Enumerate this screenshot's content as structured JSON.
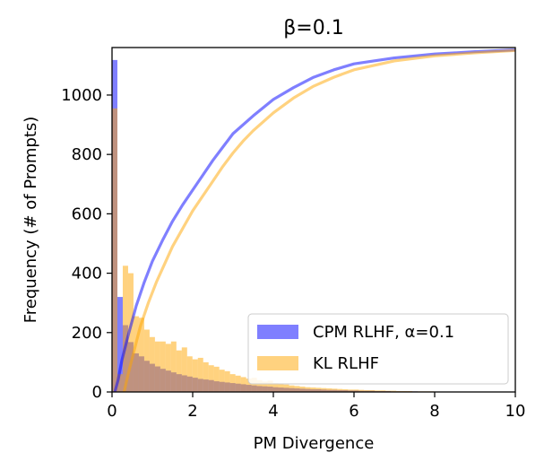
{
  "chart_data": {
    "type": "histogram",
    "title": "β=0.1",
    "xlabel": "PM Divergence",
    "ylabel": "Frequency (# of Prompts)",
    "xlim": [
      0,
      10
    ],
    "ylim": [
      0,
      1160
    ],
    "x_ticks": [
      0,
      2,
      4,
      6,
      8,
      10
    ],
    "y_ticks": [
      0,
      200,
      400,
      600,
      800,
      1000
    ],
    "grid": false,
    "legend_position": "lower-right",
    "bin_width": 0.133,
    "series": [
      {
        "name": "CPM RLHF, α=0.1",
        "color": "#0000ff",
        "alpha": 0.5,
        "histogram_counts": [
          1118,
          320,
          225,
          168,
          130,
          120,
          105,
          95,
          86,
          78,
          72,
          66,
          60,
          56,
          52,
          48,
          44,
          42,
          40,
          36,
          34,
          32,
          30,
          28,
          26,
          24,
          22,
          20,
          19,
          18,
          16,
          15,
          14,
          13,
          12,
          11,
          10,
          9,
          9,
          8,
          7,
          7,
          6,
          6,
          5,
          5,
          4,
          4,
          4,
          3,
          3,
          3,
          2,
          2,
          2,
          2,
          2,
          1,
          1,
          1,
          1,
          1,
          1,
          1,
          1,
          0,
          0,
          0,
          0,
          0,
          0,
          0,
          0,
          0,
          0
        ],
        "cdf_x": [
          0.07,
          0.15,
          0.25,
          0.4,
          0.6,
          0.8,
          1.0,
          1.25,
          1.5,
          1.75,
          2.0,
          2.25,
          2.5,
          2.75,
          3.0,
          3.5,
          4.0,
          4.5,
          5.0,
          5.5,
          6.0,
          7.0,
          8.0,
          9.0,
          10.0
        ],
        "cdf_y": [
          0,
          40,
          110,
          190,
          290,
          370,
          440,
          510,
          575,
          630,
          680,
          730,
          780,
          825,
          870,
          930,
          985,
          1025,
          1060,
          1085,
          1105,
          1125,
          1138,
          1146,
          1152
        ]
      },
      {
        "name": "KL RLHF",
        "color": "#ffa500",
        "alpha": 0.5,
        "histogram_counts": [
          955,
          60,
          425,
          400,
          255,
          250,
          210,
          185,
          170,
          170,
          162,
          170,
          140,
          150,
          120,
          110,
          115,
          100,
          90,
          85,
          75,
          70,
          60,
          55,
          50,
          45,
          48,
          40,
          35,
          38,
          30,
          28,
          25,
          22,
          20,
          18,
          16,
          15,
          14,
          13,
          12,
          11,
          10,
          9,
          8,
          8,
          7,
          6,
          6,
          5,
          5,
          4,
          4,
          3,
          3,
          3,
          2,
          2,
          2,
          2,
          1,
          1,
          1,
          1,
          1,
          1,
          0,
          0,
          0,
          0,
          0,
          0,
          0,
          0,
          0
        ],
        "cdf_x": [
          0.3,
          0.4,
          0.55,
          0.7,
          0.9,
          1.1,
          1.3,
          1.5,
          1.75,
          2.0,
          2.25,
          2.5,
          2.75,
          3.0,
          3.25,
          3.5,
          4.0,
          4.5,
          5.0,
          5.5,
          6.0,
          7.0,
          8.0,
          9.0,
          10.0
        ],
        "cdf_y": [
          0,
          60,
          140,
          220,
          300,
          370,
          430,
          490,
          550,
          610,
          660,
          710,
          760,
          805,
          845,
          880,
          940,
          990,
          1030,
          1060,
          1085,
          1115,
          1132,
          1142,
          1150
        ]
      }
    ]
  }
}
